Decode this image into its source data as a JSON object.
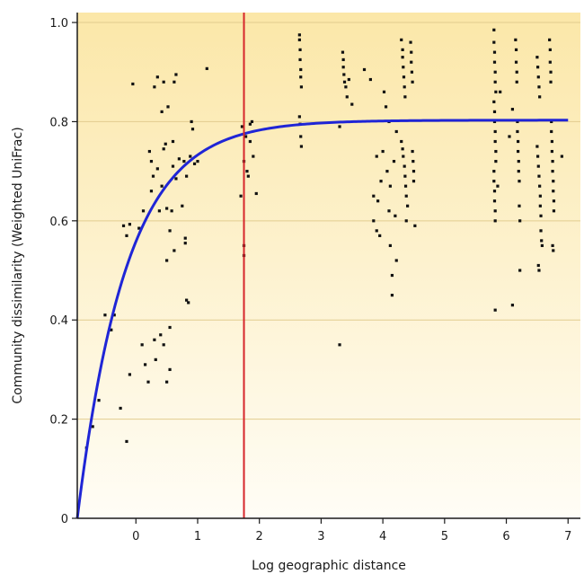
{
  "chart_data": {
    "type": "scatter",
    "title": "",
    "xlabel": "Log geographic distance",
    "ylabel": "Community dissimilarity (Weighted UniFrac)",
    "xlim": [
      -0.95,
      7.2
    ],
    "ylim": [
      0,
      1.02
    ],
    "xticks": [
      0,
      1,
      2,
      3,
      4,
      5,
      6,
      7
    ],
    "yticks": [
      0,
      0.2,
      0.4,
      0.6,
      0.8,
      1.0
    ],
    "ytick_labels": [
      "0",
      "0.2",
      "0.4",
      "0.6",
      "0.8",
      "1.0"
    ],
    "grid": "horizontal",
    "background_gradient": [
      "#fbe7a8",
      "#fffdf6"
    ],
    "grid_color": "#e2cc8f",
    "point_color": "#111111",
    "fit_color": "#1f25d6",
    "threshold_color": "#d6262b",
    "threshold_x": 1.75,
    "fit_curve": {
      "model": "asymptotic",
      "asymptote": 0.803,
      "origin_x": -0.95,
      "rate": 1.25
    },
    "points": [
      [
        -0.8,
        0.142
      ],
      [
        -0.7,
        0.185
      ],
      [
        -0.6,
        0.238
      ],
      [
        -0.5,
        0.41
      ],
      [
        -0.4,
        0.38
      ],
      [
        -0.35,
        0.41
      ],
      [
        -0.25,
        0.222
      ],
      [
        -0.15,
        0.155
      ],
      [
        -0.1,
        0.29
      ],
      [
        -0.1,
        0.593
      ],
      [
        -0.05,
        0.876
      ],
      [
        -0.2,
        0.59
      ],
      [
        -0.15,
        0.57
      ],
      [
        0.05,
        0.585
      ],
      [
        0.1,
        0.35
      ],
      [
        0.12,
        0.62
      ],
      [
        0.15,
        0.31
      ],
      [
        0.2,
        0.275
      ],
      [
        0.22,
        0.74
      ],
      [
        0.25,
        0.72
      ],
      [
        0.25,
        0.66
      ],
      [
        0.28,
        0.69
      ],
      [
        0.3,
        0.87
      ],
      [
        0.3,
        0.36
      ],
      [
        0.32,
        0.32
      ],
      [
        0.35,
        0.705
      ],
      [
        0.35,
        0.89
      ],
      [
        0.38,
        0.62
      ],
      [
        0.4,
        0.37
      ],
      [
        0.42,
        0.67
      ],
      [
        0.42,
        0.82
      ],
      [
        0.45,
        0.88
      ],
      [
        0.45,
        0.745
      ],
      [
        0.45,
        0.35
      ],
      [
        0.48,
        0.755
      ],
      [
        0.5,
        0.625
      ],
      [
        0.5,
        0.52
      ],
      [
        0.5,
        0.275
      ],
      [
        0.52,
        0.83
      ],
      [
        0.55,
        0.58
      ],
      [
        0.55,
        0.385
      ],
      [
        0.55,
        0.3
      ],
      [
        0.58,
        0.62
      ],
      [
        0.6,
        0.71
      ],
      [
        0.6,
        0.76
      ],
      [
        0.62,
        0.88
      ],
      [
        0.62,
        0.54
      ],
      [
        0.65,
        0.895
      ],
      [
        0.65,
        0.685
      ],
      [
        0.7,
        0.725
      ],
      [
        0.75,
        0.63
      ],
      [
        0.78,
        0.72
      ],
      [
        0.8,
        0.565
      ],
      [
        0.8,
        0.555
      ],
      [
        0.82,
        0.69
      ],
      [
        0.82,
        0.44
      ],
      [
        0.85,
        0.435
      ],
      [
        0.88,
        0.73
      ],
      [
        0.9,
        0.8
      ],
      [
        0.92,
        0.785
      ],
      [
        0.95,
        0.715
      ],
      [
        1.0,
        0.72
      ],
      [
        1.15,
        0.907
      ],
      [
        1.7,
        0.65
      ],
      [
        1.72,
        0.79
      ],
      [
        1.75,
        0.55
      ],
      [
        1.75,
        0.53
      ],
      [
        1.75,
        0.72
      ],
      [
        1.78,
        0.77
      ],
      [
        1.8,
        0.7
      ],
      [
        1.82,
        0.69
      ],
      [
        1.85,
        0.76
      ],
      [
        1.85,
        0.795
      ],
      [
        1.88,
        0.8
      ],
      [
        1.9,
        0.73
      ],
      [
        1.95,
        0.655
      ],
      [
        2.65,
        0.975
      ],
      [
        2.65,
        0.965
      ],
      [
        2.66,
        0.945
      ],
      [
        2.66,
        0.925
      ],
      [
        2.67,
        0.905
      ],
      [
        2.67,
        0.89
      ],
      [
        2.68,
        0.87
      ],
      [
        2.65,
        0.81
      ],
      [
        2.66,
        0.795
      ],
      [
        2.67,
        0.77
      ],
      [
        2.68,
        0.75
      ],
      [
        3.3,
        0.35
      ],
      [
        3.3,
        0.79
      ],
      [
        3.35,
        0.94
      ],
      [
        3.36,
        0.925
      ],
      [
        3.36,
        0.91
      ],
      [
        3.37,
        0.895
      ],
      [
        3.38,
        0.88
      ],
      [
        3.4,
        0.87
      ],
      [
        3.42,
        0.85
      ],
      [
        3.45,
        0.885
      ],
      [
        3.5,
        0.835
      ],
      [
        3.7,
        0.905
      ],
      [
        3.8,
        0.885
      ],
      [
        3.85,
        0.65
      ],
      [
        3.85,
        0.6
      ],
      [
        3.9,
        0.58
      ],
      [
        3.9,
        0.73
      ],
      [
        3.92,
        0.64
      ],
      [
        3.95,
        0.57
      ],
      [
        3.97,
        0.68
      ],
      [
        4.0,
        0.74
      ],
      [
        4.02,
        0.86
      ],
      [
        4.05,
        0.83
      ],
      [
        4.07,
        0.7
      ],
      [
        4.1,
        0.62
      ],
      [
        4.1,
        0.8
      ],
      [
        4.12,
        0.67
      ],
      [
        4.12,
        0.55
      ],
      [
        4.15,
        0.45
      ],
      [
        4.15,
        0.49
      ],
      [
        4.18,
        0.72
      ],
      [
        4.2,
        0.61
      ],
      [
        4.22,
        0.78
      ],
      [
        4.22,
        0.52
      ],
      [
        4.3,
        0.965
      ],
      [
        4.32,
        0.945
      ],
      [
        4.32,
        0.93
      ],
      [
        4.33,
        0.91
      ],
      [
        4.34,
        0.89
      ],
      [
        4.35,
        0.87
      ],
      [
        4.36,
        0.85
      ],
      [
        4.3,
        0.76
      ],
      [
        4.32,
        0.745
      ],
      [
        4.33,
        0.73
      ],
      [
        4.35,
        0.71
      ],
      [
        4.36,
        0.69
      ],
      [
        4.37,
        0.67
      ],
      [
        4.38,
        0.65
      ],
      [
        4.38,
        0.6
      ],
      [
        4.4,
        0.63
      ],
      [
        4.45,
        0.96
      ],
      [
        4.46,
        0.94
      ],
      [
        4.46,
        0.92
      ],
      [
        4.47,
        0.9
      ],
      [
        4.48,
        0.88
      ],
      [
        4.48,
        0.74
      ],
      [
        4.49,
        0.72
      ],
      [
        4.5,
        0.7
      ],
      [
        4.5,
        0.68
      ],
      [
        4.52,
        0.59
      ],
      [
        5.8,
        0.985
      ],
      [
        5.8,
        0.96
      ],
      [
        5.81,
        0.94
      ],
      [
        5.81,
        0.92
      ],
      [
        5.82,
        0.9
      ],
      [
        5.82,
        0.88
      ],
      [
        5.83,
        0.86
      ],
      [
        5.8,
        0.84
      ],
      [
        5.81,
        0.82
      ],
      [
        5.81,
        0.8
      ],
      [
        5.82,
        0.78
      ],
      [
        5.82,
        0.76
      ],
      [
        5.83,
        0.74
      ],
      [
        5.83,
        0.72
      ],
      [
        5.8,
        0.7
      ],
      [
        5.8,
        0.68
      ],
      [
        5.81,
        0.66
      ],
      [
        5.81,
        0.64
      ],
      [
        5.82,
        0.62
      ],
      [
        5.82,
        0.6
      ],
      [
        5.82,
        0.42
      ],
      [
        5.86,
        0.67
      ],
      [
        5.9,
        0.86
      ],
      [
        6.05,
        0.77
      ],
      [
        6.1,
        0.43
      ],
      [
        6.1,
        0.825
      ],
      [
        6.15,
        0.965
      ],
      [
        6.16,
        0.945
      ],
      [
        6.16,
        0.92
      ],
      [
        6.17,
        0.9
      ],
      [
        6.17,
        0.88
      ],
      [
        6.18,
        0.8
      ],
      [
        6.18,
        0.78
      ],
      [
        6.19,
        0.76
      ],
      [
        6.19,
        0.74
      ],
      [
        6.2,
        0.72
      ],
      [
        6.2,
        0.7
      ],
      [
        6.21,
        0.68
      ],
      [
        6.21,
        0.63
      ],
      [
        6.22,
        0.6
      ],
      [
        6.22,
        0.5
      ],
      [
        6.5,
        0.93
      ],
      [
        6.51,
        0.91
      ],
      [
        6.52,
        0.89
      ],
      [
        6.53,
        0.87
      ],
      [
        6.54,
        0.85
      ],
      [
        6.5,
        0.75
      ],
      [
        6.51,
        0.73
      ],
      [
        6.52,
        0.71
      ],
      [
        6.53,
        0.69
      ],
      [
        6.54,
        0.67
      ],
      [
        6.55,
        0.65
      ],
      [
        6.55,
        0.63
      ],
      [
        6.56,
        0.61
      ],
      [
        6.56,
        0.58
      ],
      [
        6.57,
        0.56
      ],
      [
        6.58,
        0.55
      ],
      [
        6.52,
        0.51
      ],
      [
        6.53,
        0.5
      ],
      [
        6.7,
        0.965
      ],
      [
        6.71,
        0.945
      ],
      [
        6.71,
        0.92
      ],
      [
        6.72,
        0.9
      ],
      [
        6.72,
        0.88
      ],
      [
        6.73,
        0.8
      ],
      [
        6.73,
        0.78
      ],
      [
        6.74,
        0.76
      ],
      [
        6.74,
        0.74
      ],
      [
        6.75,
        0.72
      ],
      [
        6.75,
        0.7
      ],
      [
        6.76,
        0.68
      ],
      [
        6.76,
        0.66
      ],
      [
        6.77,
        0.64
      ],
      [
        6.77,
        0.62
      ],
      [
        6.75,
        0.55
      ],
      [
        6.76,
        0.54
      ],
      [
        6.9,
        0.73
      ]
    ]
  }
}
